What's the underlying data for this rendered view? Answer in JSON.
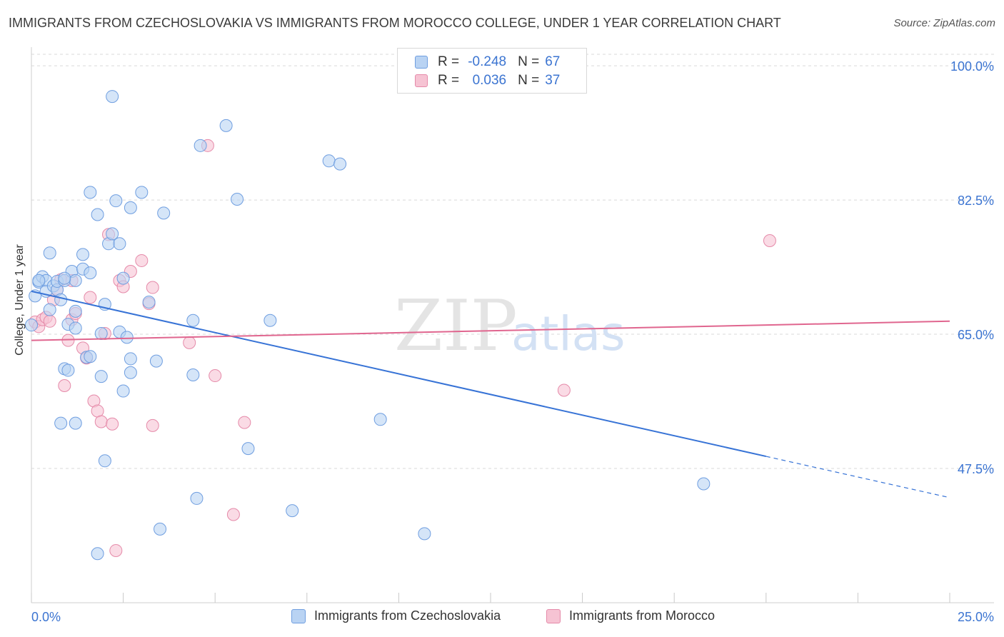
{
  "title": "IMMIGRANTS FROM CZECHOSLOVAKIA VS IMMIGRANTS FROM MOROCCO COLLEGE, UNDER 1 YEAR CORRELATION CHART",
  "source": "Source: ZipAtlas.com",
  "watermark": {
    "zip": "ZIP",
    "atlas": "atlas"
  },
  "legend": {
    "rows": [
      {
        "r_label": "R =",
        "r_value": "-0.248",
        "n_label": "N =",
        "n_value": "67"
      },
      {
        "r_label": "R =",
        "r_value": "0.036",
        "n_label": "N =",
        "n_value": "37"
      }
    ]
  },
  "colors": {
    "blue_fill": "#b9d3f3",
    "blue_stroke": "#6f9ee0",
    "blue_line": "#3773d6",
    "pink_fill": "#f6c3d3",
    "pink_stroke": "#e58aa9",
    "pink_line": "#e0668f",
    "axis_text": "#3b74d1",
    "grid": "#d9d9d9"
  },
  "chart_data": {
    "type": "scatter",
    "title": "IMMIGRANTS FROM CZECHOSLOVAKIA VS IMMIGRANTS FROM MOROCCO COLLEGE, UNDER 1 YEAR CORRELATION CHART",
    "xlabel": "",
    "ylabel": "College, Under 1 year",
    "xlim": [
      0,
      25
    ],
    "ylim": [
      30,
      101.5
    ],
    "x_tick_labels": [
      "0.0%",
      "25.0%"
    ],
    "y_ticks": [
      100,
      82.5,
      65,
      47.5
    ],
    "y_tick_labels": [
      "100.0%",
      "82.5%",
      "65.0%",
      "47.5%"
    ],
    "grid": true,
    "legend_position": "bottom",
    "series": [
      {
        "name": "Immigrants from Czechoslovakia",
        "color": "blue",
        "trend": {
          "x0": 0,
          "y0": 70.6,
          "x1": 25,
          "y1": 43.7,
          "solid_until_x": 20
        },
        "points": [
          [
            0.1,
            70.0
          ],
          [
            0.2,
            71.8
          ],
          [
            0.3,
            72.5
          ],
          [
            0.4,
            72.0
          ],
          [
            0.4,
            70.6
          ],
          [
            0.5,
            68.2
          ],
          [
            0.5,
            75.6
          ],
          [
            0.6,
            71.3
          ],
          [
            0.7,
            70.8
          ],
          [
            0.7,
            71.9
          ],
          [
            0.8,
            69.5
          ],
          [
            0.9,
            72.0
          ],
          [
            0.9,
            60.5
          ],
          [
            1.0,
            60.3
          ],
          [
            1.0,
            66.3
          ],
          [
            1.1,
            73.2
          ],
          [
            1.2,
            65.8
          ],
          [
            1.2,
            72.0
          ],
          [
            1.2,
            68.0
          ],
          [
            1.4,
            73.5
          ],
          [
            1.4,
            75.4
          ],
          [
            1.5,
            62.0
          ],
          [
            1.6,
            73.0
          ],
          [
            1.6,
            62.1
          ],
          [
            1.6,
            83.5
          ],
          [
            1.8,
            80.6
          ],
          [
            1.9,
            59.5
          ],
          [
            1.9,
            65.1
          ],
          [
            2.0,
            48.5
          ],
          [
            2.0,
            68.9
          ],
          [
            2.1,
            76.8
          ],
          [
            2.2,
            78.1
          ],
          [
            2.2,
            96.0
          ],
          [
            2.3,
            82.4
          ],
          [
            2.4,
            76.8
          ],
          [
            2.4,
            65.3
          ],
          [
            2.5,
            57.6
          ],
          [
            2.5,
            72.3
          ],
          [
            2.6,
            64.6
          ],
          [
            2.7,
            81.5
          ],
          [
            2.7,
            61.8
          ],
          [
            2.7,
            60.0
          ],
          [
            3.0,
            83.5
          ],
          [
            3.2,
            69.2
          ],
          [
            3.4,
            61.5
          ],
          [
            3.5,
            39.6
          ],
          [
            3.6,
            80.8
          ],
          [
            4.4,
            66.8
          ],
          [
            4.4,
            59.7
          ],
          [
            4.5,
            43.6
          ],
          [
            4.6,
            89.6
          ],
          [
            5.3,
            92.2
          ],
          [
            5.6,
            82.6
          ],
          [
            5.9,
            50.1
          ],
          [
            6.5,
            66.8
          ],
          [
            7.1,
            42.0
          ],
          [
            8.1,
            87.6
          ],
          [
            8.4,
            87.2
          ],
          [
            9.5,
            53.9
          ],
          [
            10.7,
            39.0
          ],
          [
            18.3,
            45.5
          ],
          [
            1.2,
            53.4
          ],
          [
            0.8,
            53.4
          ],
          [
            1.8,
            36.4
          ],
          [
            0.2,
            72.0
          ],
          [
            0.9,
            72.3
          ],
          [
            0.0,
            66.2
          ]
        ]
      },
      {
        "name": "Immigrants from Morocco",
        "color": "pink",
        "trend": {
          "x0": 0,
          "y0": 64.2,
          "x1": 25,
          "y1": 66.7
        },
        "points": [
          [
            0.1,
            66.6
          ],
          [
            0.2,
            66.0
          ],
          [
            0.3,
            66.9
          ],
          [
            0.4,
            67.2
          ],
          [
            0.5,
            66.7
          ],
          [
            0.6,
            69.5
          ],
          [
            0.7,
            70.8
          ],
          [
            0.8,
            72.1
          ],
          [
            0.9,
            58.3
          ],
          [
            1.0,
            64.2
          ],
          [
            1.1,
            72.0
          ],
          [
            1.1,
            66.9
          ],
          [
            1.2,
            67.7
          ],
          [
            1.4,
            63.2
          ],
          [
            1.5,
            61.9
          ],
          [
            1.6,
            69.8
          ],
          [
            1.7,
            56.3
          ],
          [
            1.8,
            55.0
          ],
          [
            1.9,
            53.6
          ],
          [
            2.0,
            65.1
          ],
          [
            2.1,
            78.0
          ],
          [
            2.2,
            53.3
          ],
          [
            2.3,
            36.8
          ],
          [
            2.4,
            72.0
          ],
          [
            2.5,
            71.2
          ],
          [
            2.7,
            73.2
          ],
          [
            3.0,
            74.6
          ],
          [
            3.2,
            69.0
          ],
          [
            3.3,
            71.1
          ],
          [
            3.3,
            53.1
          ],
          [
            4.3,
            63.9
          ],
          [
            4.8,
            89.6
          ],
          [
            5.0,
            59.6
          ],
          [
            5.5,
            41.5
          ],
          [
            5.8,
            53.5
          ],
          [
            14.5,
            57.7
          ],
          [
            20.1,
            77.2
          ]
        ]
      }
    ]
  },
  "axis": {
    "ylabel": "College, Under 1 year"
  },
  "bottom_legend": {
    "items": [
      {
        "label": "Immigrants from Czechoslovakia"
      },
      {
        "label": "Immigrants from Morocco"
      }
    ]
  }
}
